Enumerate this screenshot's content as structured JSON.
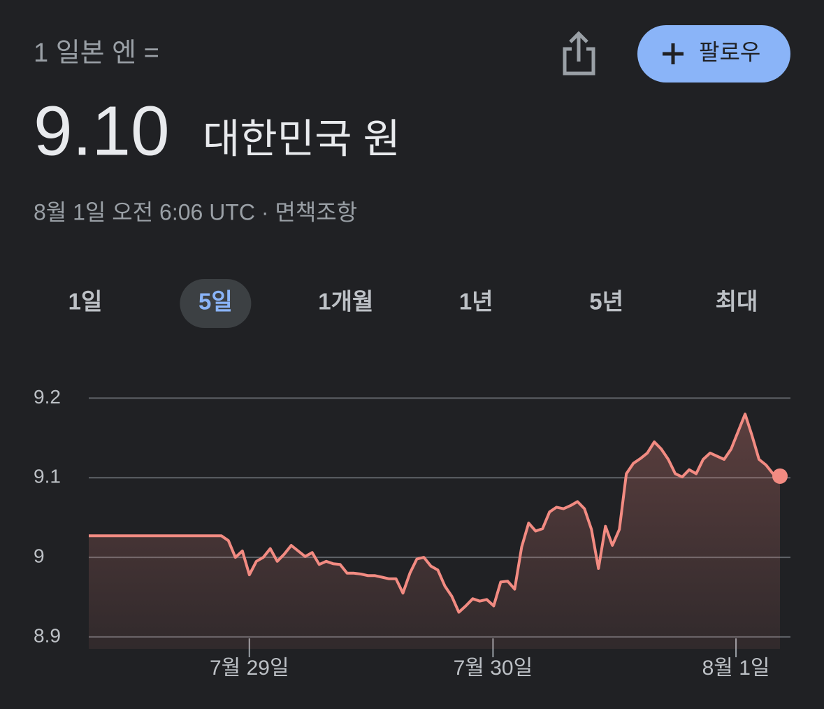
{
  "header": {
    "label": "1 일본 엔 =",
    "value": "9.10",
    "currency": "대한민국 원",
    "meta": "8월 1일 오전 6:06 UTC · 면책조항",
    "follow": "팔로우"
  },
  "tabs": [
    "1일",
    "5일",
    "1개월",
    "1년",
    "5년",
    "최대"
  ],
  "selected_tab": 1,
  "chart_data": {
    "type": "line",
    "color": "#f28b82",
    "grid": true,
    "values": [
      9.027,
      9.027,
      9.027,
      9.027,
      9.027,
      9.027,
      9.027,
      9.027,
      9.027,
      9.027,
      9.027,
      9.027,
      9.027,
      9.027,
      9.027,
      9.027,
      9.027,
      9.027,
      9.027,
      9.027,
      9.021,
      9.0,
      9.008,
      8.978,
      8.995,
      9.0,
      9.011,
      8.995,
      9.004,
      9.015,
      9.008,
      9.001,
      9.006,
      8.991,
      8.995,
      8.992,
      8.991,
      8.98,
      8.98,
      8.979,
      8.977,
      8.977,
      8.975,
      8.973,
      8.973,
      8.955,
      8.98,
      8.998,
      9.0,
      8.989,
      8.984,
      8.964,
      8.951,
      8.931,
      8.939,
      8.948,
      8.945,
      8.947,
      8.939,
      8.969,
      8.97,
      8.96,
      9.013,
      9.043,
      9.033,
      9.036,
      9.057,
      9.063,
      9.061,
      9.065,
      9.07,
      9.061,
      9.035,
      8.986,
      9.039,
      9.015,
      9.035,
      9.105,
      9.118,
      9.124,
      9.131,
      9.145,
      9.136,
      9.123,
      9.105,
      9.101,
      9.11,
      9.105,
      9.123,
      9.131,
      9.127,
      9.123,
      9.136,
      9.158,
      9.18,
      9.153,
      9.123,
      9.116,
      9.105,
      9.102
    ],
    "xlim": [
      0,
      99
    ],
    "xticks": [
      {
        "value": 23,
        "label": "7월 29일"
      },
      {
        "value": 57.9,
        "label": "7월 30일"
      },
      {
        "value": 92.7,
        "label": "8월 1일"
      }
    ],
    "ylim": [
      8.885,
      9.21
    ],
    "yticks": [
      8.9,
      9.0,
      9.1,
      9.2
    ]
  }
}
